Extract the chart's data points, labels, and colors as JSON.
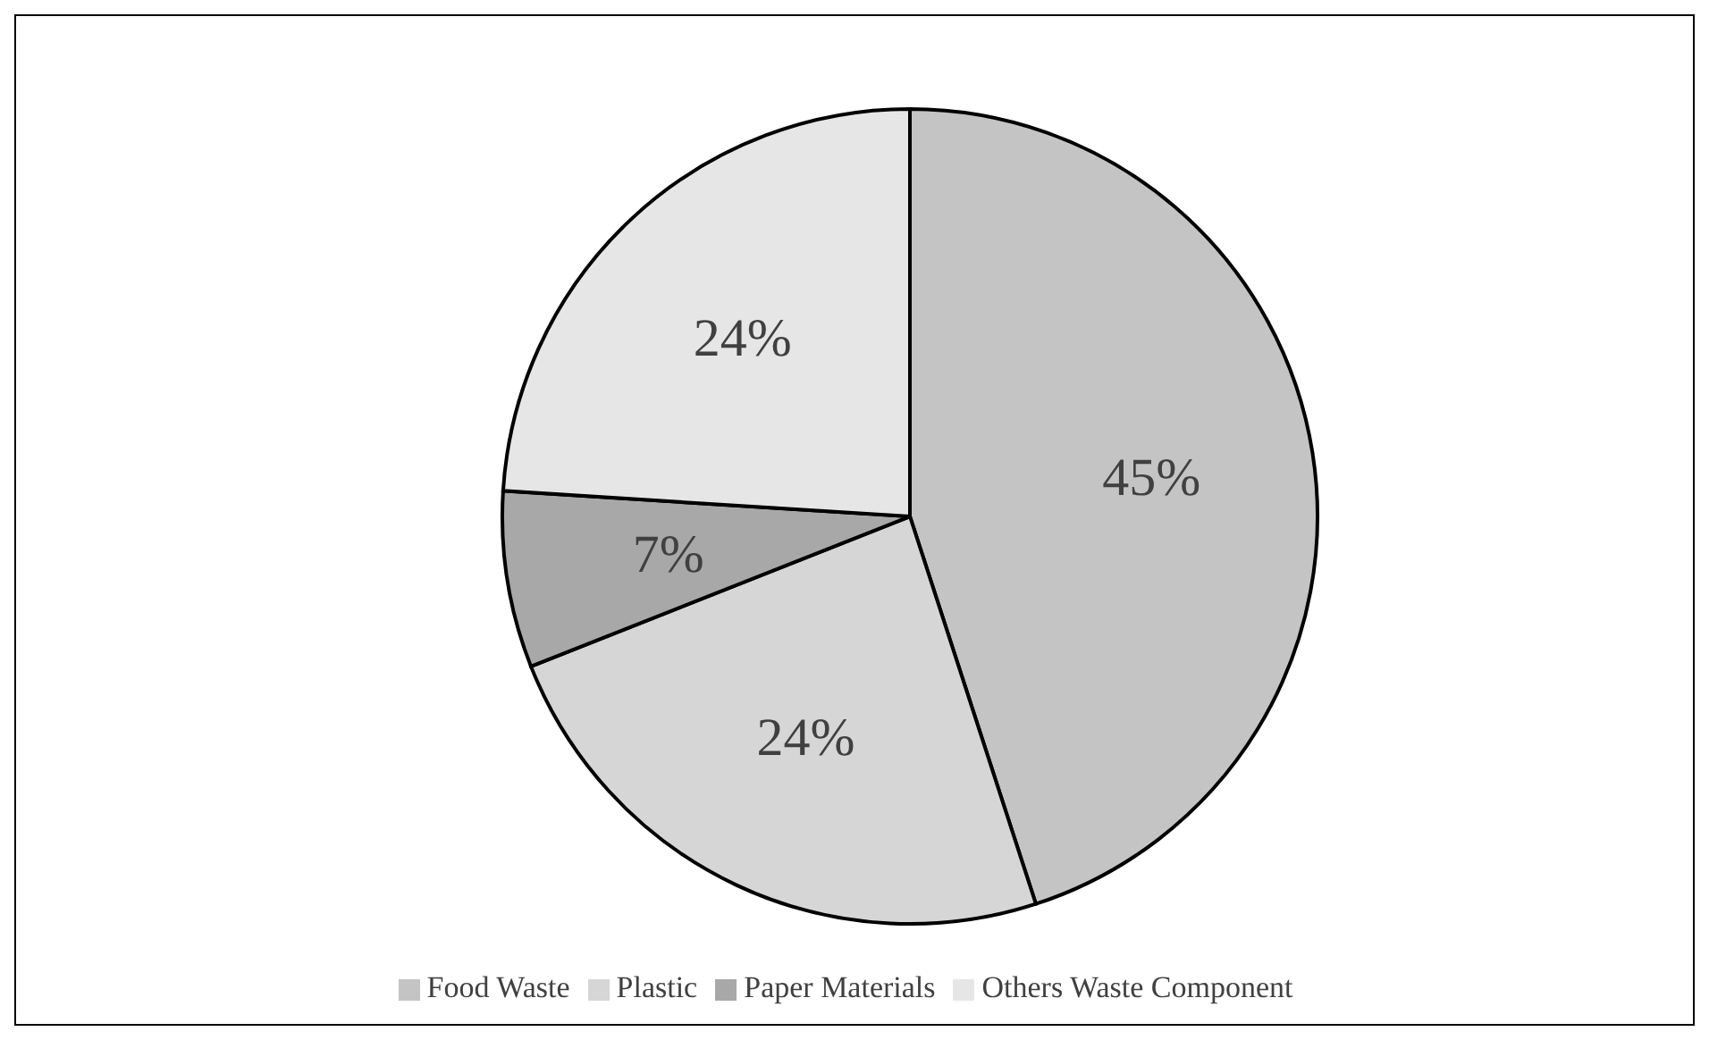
{
  "chart_data": {
    "type": "pie",
    "categories": [
      "Food Waste",
      "Plastic",
      "Paper Materials",
      "Others Waste Component"
    ],
    "values": [
      45,
      24,
      7,
      24
    ],
    "colors": [
      "#c4c4c4",
      "#d6d6d6",
      "#a8a8a8",
      "#e6e6e6"
    ],
    "value_labels": [
      "45%",
      "24%",
      "7%",
      "24%"
    ],
    "legend": "bottom"
  }
}
